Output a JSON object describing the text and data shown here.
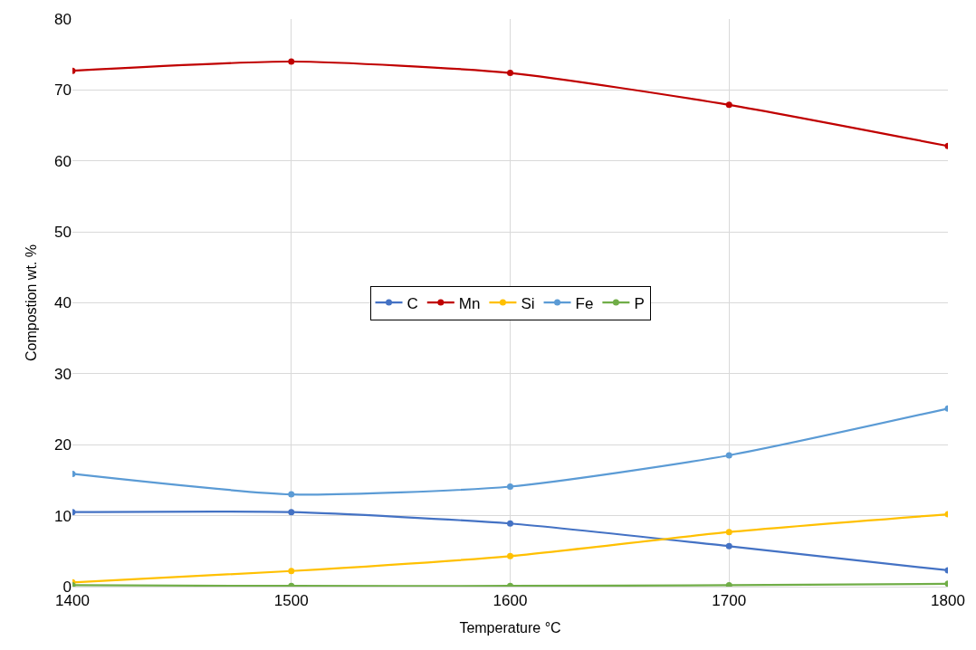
{
  "chart_data": {
    "type": "line",
    "xlabel": "Temperature °C",
    "ylabel": "Compostion wt. %",
    "x": [
      1400,
      1500,
      1600,
      1700,
      1800
    ],
    "series": [
      {
        "name": "C",
        "color": "#4472c4",
        "values": [
          10.5,
          10.5,
          8.9,
          5.7,
          2.3
        ]
      },
      {
        "name": "Mn",
        "color": "#c00000",
        "values": [
          72.7,
          74.0,
          72.4,
          67.9,
          62.1
        ]
      },
      {
        "name": "Si",
        "color": "#ffc000",
        "values": [
          0.6,
          2.2,
          4.3,
          7.7,
          10.2
        ]
      },
      {
        "name": "Fe",
        "color": "#5b9bd5",
        "values": [
          15.9,
          13.0,
          14.1,
          18.5,
          25.1
        ]
      },
      {
        "name": "P",
        "color": "#70ad47",
        "values": [
          0.2,
          0.1,
          0.1,
          0.2,
          0.4
        ]
      }
    ],
    "xlim": [
      1400,
      1800
    ],
    "xticks": [
      1400,
      1500,
      1600,
      1700,
      1800
    ],
    "ylim": [
      0,
      80
    ],
    "yticks": [
      0,
      10,
      20,
      30,
      40,
      50,
      60,
      70,
      80
    ],
    "grid": true,
    "legend": "center",
    "marker": "circle",
    "line_style": "solid"
  }
}
